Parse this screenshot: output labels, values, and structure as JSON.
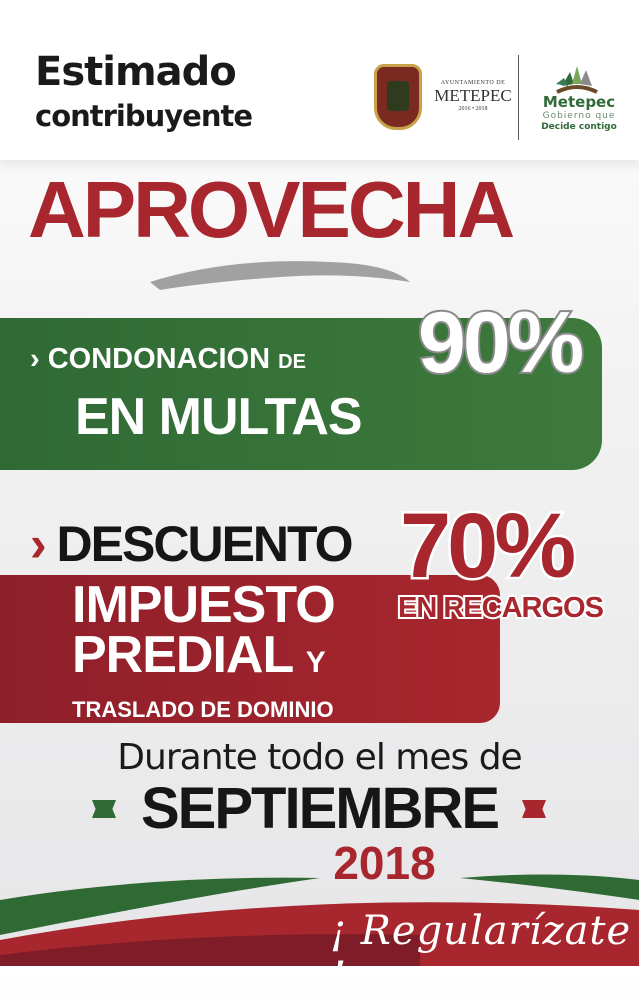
{
  "header": {
    "greeting_line1": "Estimado",
    "greeting_line2": "contribuyente"
  },
  "logos": {
    "ayuntamiento": {
      "small": "AYUNTAMIENTO DE",
      "name": "METEPEC",
      "years": "2016 • 2018"
    },
    "gobierno": {
      "name": "Metepec",
      "line2": "Gobierno que",
      "line3": "Decide contigo"
    }
  },
  "headline": "APROVECHA",
  "offer1": {
    "line1": "CONDONACION",
    "de": "DE",
    "line2": "EN MULTAS",
    "percent": "90%"
  },
  "offer2": {
    "title": "DESCUENTO",
    "percent": "70%",
    "sub": "EN RECARGOS",
    "line1": "IMPUESTO",
    "line2": "PREDIAL",
    "y": "Y",
    "line3": "TRASLADO DE DOMINIO"
  },
  "period": {
    "line1": "Durante todo el mes de",
    "month": "SEPTIEMBRE",
    "year": "2018"
  },
  "cta": "¡ Regularízate !",
  "colors": {
    "red": "#a8262d",
    "green": "#2f6a35",
    "dark": "#161616"
  }
}
